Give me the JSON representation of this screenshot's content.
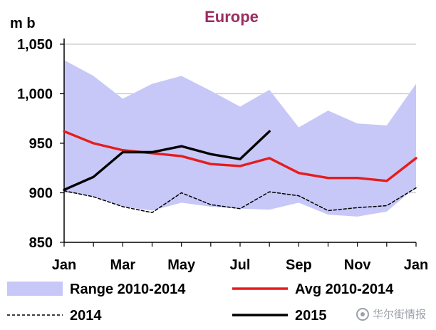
{
  "chart_data": {
    "type": "line",
    "title": "Europe",
    "ylabel": "m b",
    "xlabel": "",
    "ylim": [
      850,
      1050
    ],
    "y_ticks": [
      850,
      900,
      950,
      1000,
      1050
    ],
    "y_tick_labels": [
      "850",
      "900",
      "950",
      "1,000",
      "1,050"
    ],
    "x_ticks": [
      0,
      2,
      4,
      6,
      8,
      10,
      12
    ],
    "x_tick_labels": [
      "Jan",
      "Mar",
      "May",
      "Jul",
      "Sep",
      "Nov",
      "Jan"
    ],
    "x": [
      "Jan",
      "Feb",
      "Mar",
      "Apr",
      "May",
      "Jun",
      "Jul",
      "Aug",
      "Sep",
      "Oct",
      "Nov",
      "Dec",
      "Jan"
    ],
    "grid": true,
    "legend_position": "bottom",
    "range": {
      "name": "Range 2010-2014",
      "color": "#c7c8f7",
      "upper": [
        1034,
        1018,
        995,
        1010,
        1018,
        1003,
        987,
        1004,
        966,
        983,
        970,
        968,
        1010
      ],
      "lower": [
        902,
        896,
        886,
        882,
        890,
        886,
        884,
        883,
        890,
        878,
        876,
        881,
        906
      ]
    },
    "series": [
      {
        "name": "Avg 2010-2014",
        "color": "#e61c1c",
        "style": "solid",
        "values": [
          962,
          950,
          943,
          940,
          937,
          929,
          927,
          935,
          920,
          915,
          915,
          912,
          935
        ]
      },
      {
        "name": "2014",
        "color": "#000000",
        "style": "dashed",
        "values": [
          902,
          896,
          886,
          880,
          900,
          888,
          884,
          901,
          897,
          882,
          885,
          887,
          905
        ]
      },
      {
        "name": "2015",
        "color": "#000000",
        "style": "solid",
        "values": [
          903,
          916,
          941,
          941,
          947,
          939,
          934,
          962,
          null,
          null,
          null,
          null,
          null
        ]
      }
    ],
    "title_color": "#9b2c62"
  },
  "watermark": {
    "text": "华尔街情报",
    "icon": "chat-bubble-icon"
  }
}
